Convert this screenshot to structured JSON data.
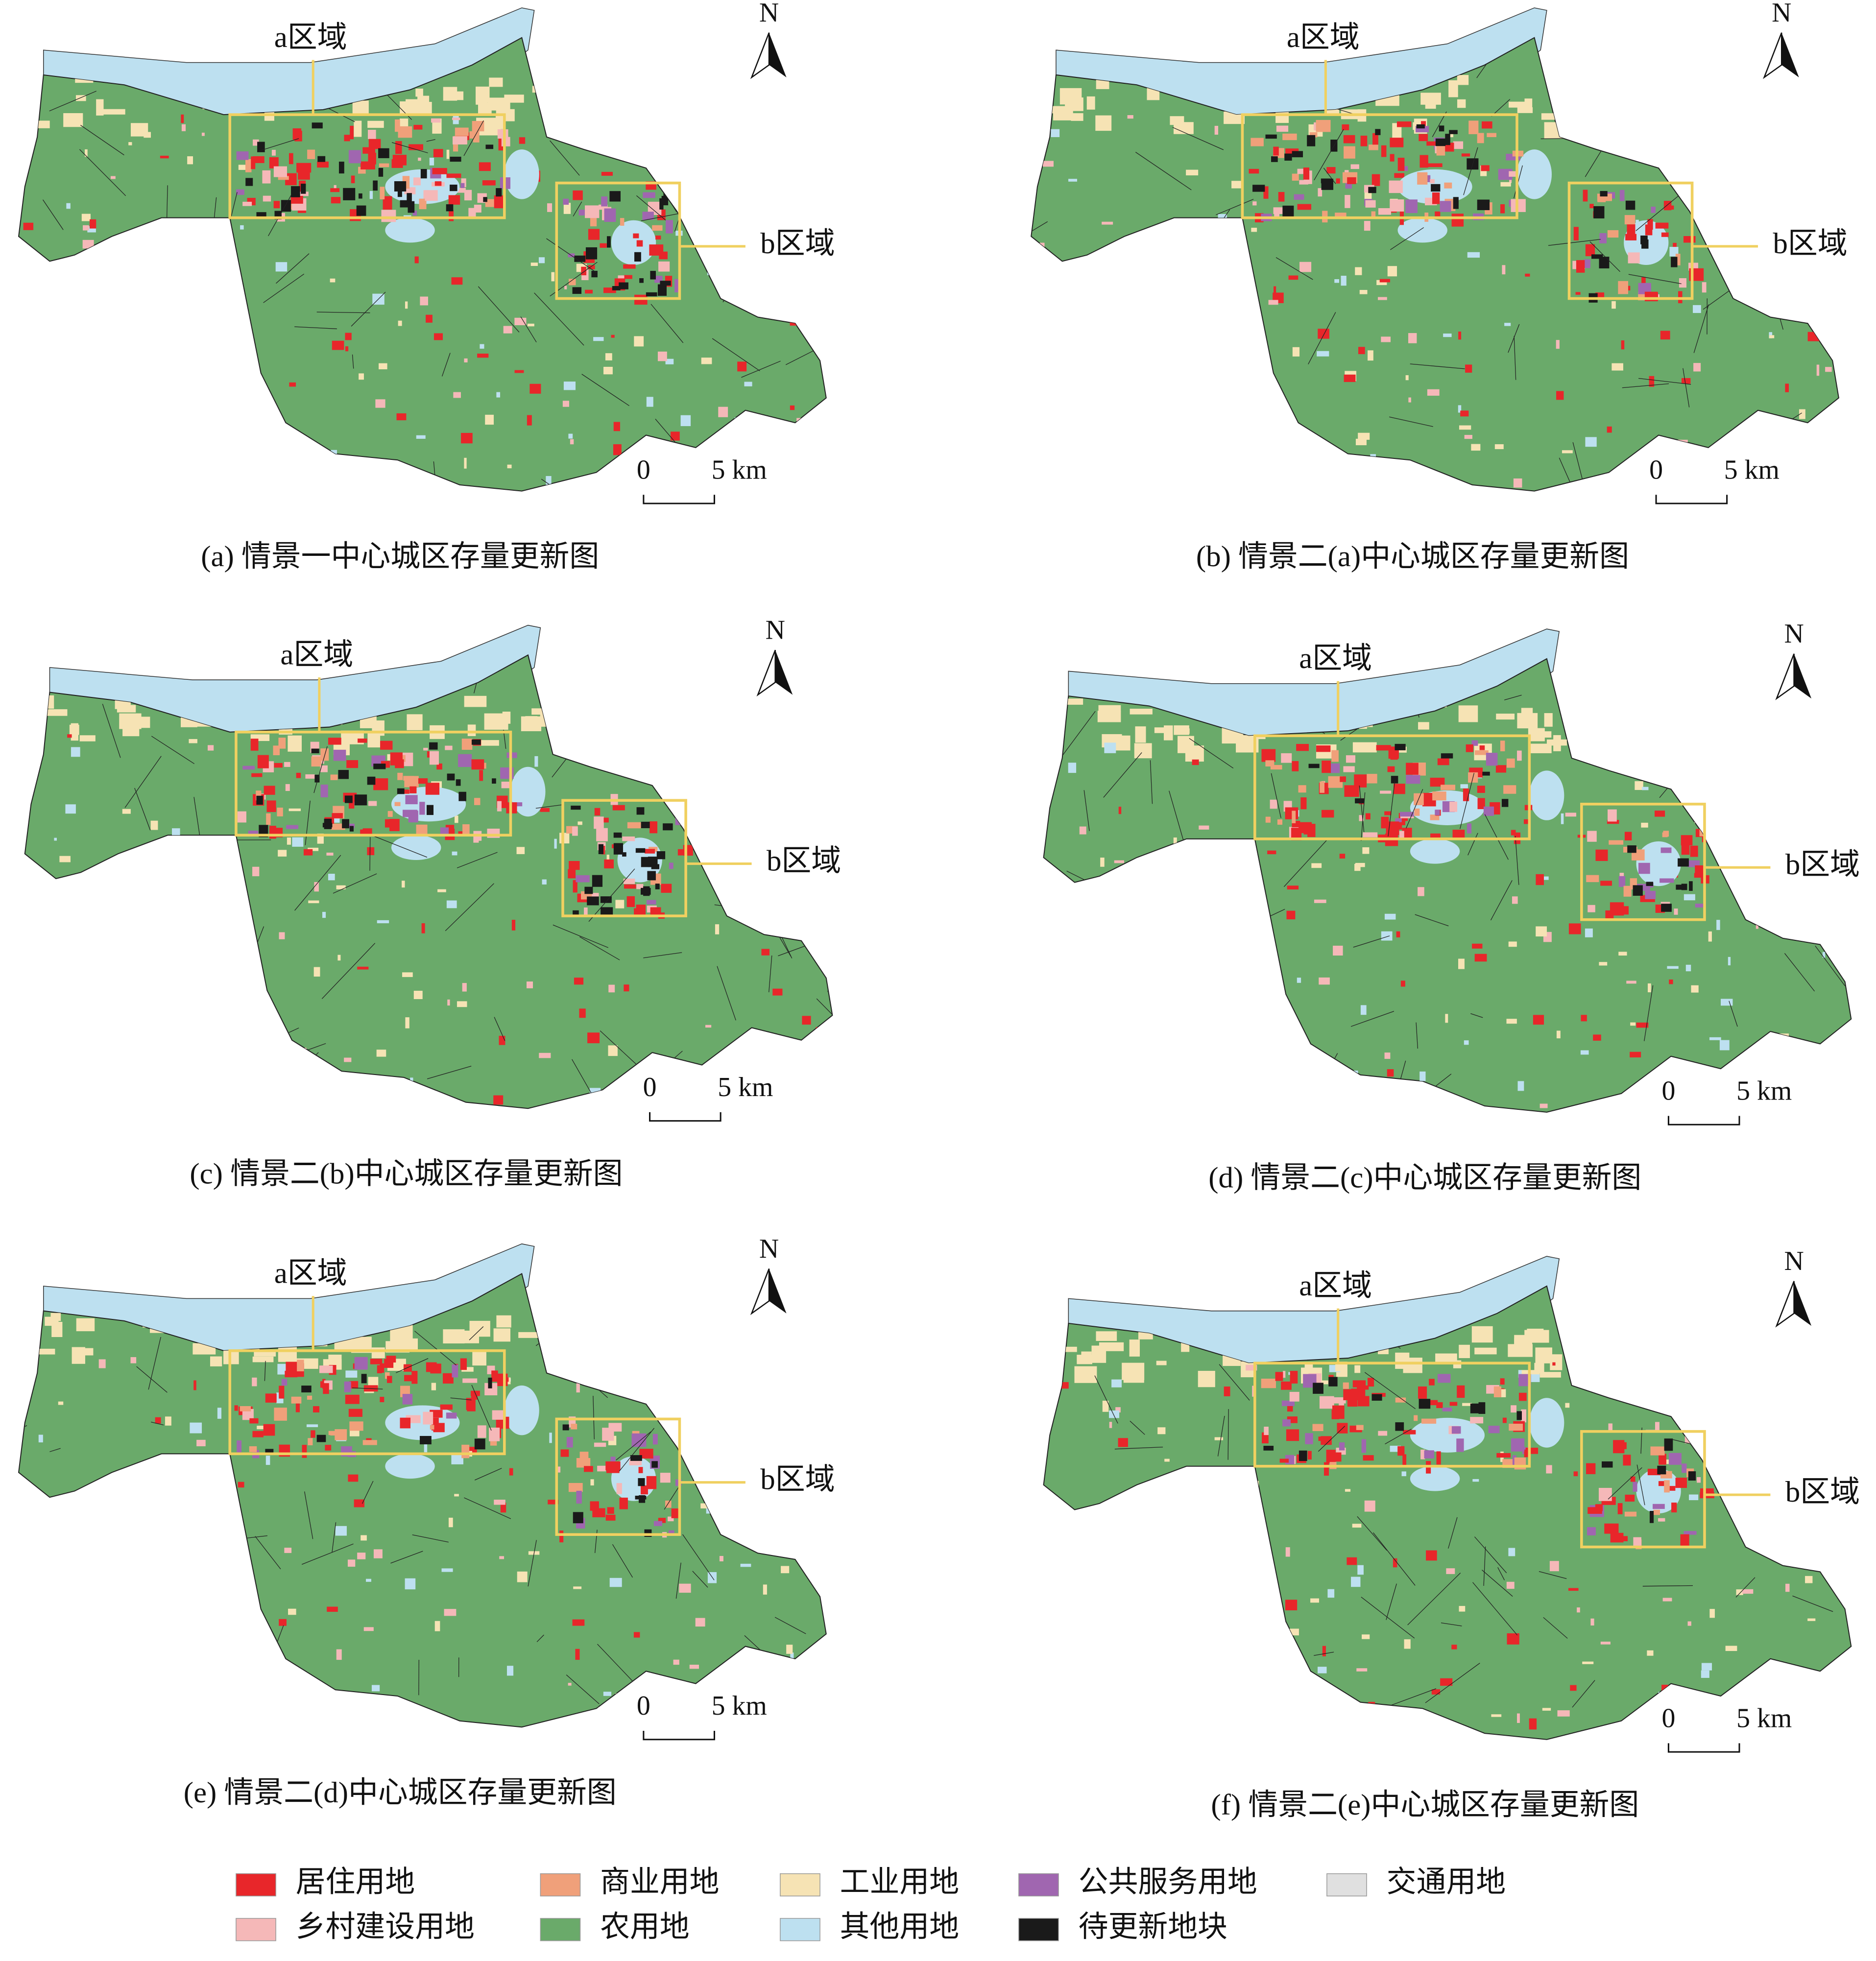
{
  "panels": [
    {
      "caption": "(a) 情景一中心城区存量更新图",
      "region_a": "a区域",
      "region_b": "b区域",
      "north": "N",
      "scale_start": "0",
      "scale_end": "5 km"
    },
    {
      "caption": "(b) 情景二(a)中心城区存量更新图",
      "region_a": "a区域",
      "region_b": "b区域",
      "north": "N",
      "scale_start": "0",
      "scale_end": "5 km"
    },
    {
      "caption": "(c) 情景二(b)中心城区存量更新图",
      "region_a": "a区域",
      "region_b": "b区域",
      "north": "N",
      "scale_start": "0",
      "scale_end": "5 km"
    },
    {
      "caption": "(d) 情景二(c)中心城区存量更新图",
      "region_a": "a区域",
      "region_b": "b区域",
      "north": "N",
      "scale_start": "0",
      "scale_end": "5 km"
    },
    {
      "caption": "(e) 情景二(d)中心城区存量更新图",
      "region_a": "a区域",
      "region_b": "b区域",
      "north": "N",
      "scale_start": "0",
      "scale_end": "5 km"
    },
    {
      "caption": "(f) 情景二(e)中心城区存量更新图",
      "region_a": "a区域",
      "region_b": "b区域",
      "north": "N",
      "scale_start": "0",
      "scale_end": "5 km"
    }
  ],
  "legend": [
    {
      "label": "居住用地",
      "color": "#e8262a"
    },
    {
      "label": "商业用地",
      "color": "#f0a07a"
    },
    {
      "label": "工业用地",
      "color": "#f6e3b4"
    },
    {
      "label": "公共服务用地",
      "color": "#a066b0"
    },
    {
      "label": "交通用地",
      "color": "#e0e0e0"
    },
    {
      "label": "乡村建设用地",
      "color": "#f5b8b8"
    },
    {
      "label": "农用地",
      "color": "#6aaa6a"
    },
    {
      "label": "其他用地",
      "color": "#bde0f0"
    },
    {
      "label": "待更新地块",
      "color": "#1a1a1a"
    }
  ]
}
